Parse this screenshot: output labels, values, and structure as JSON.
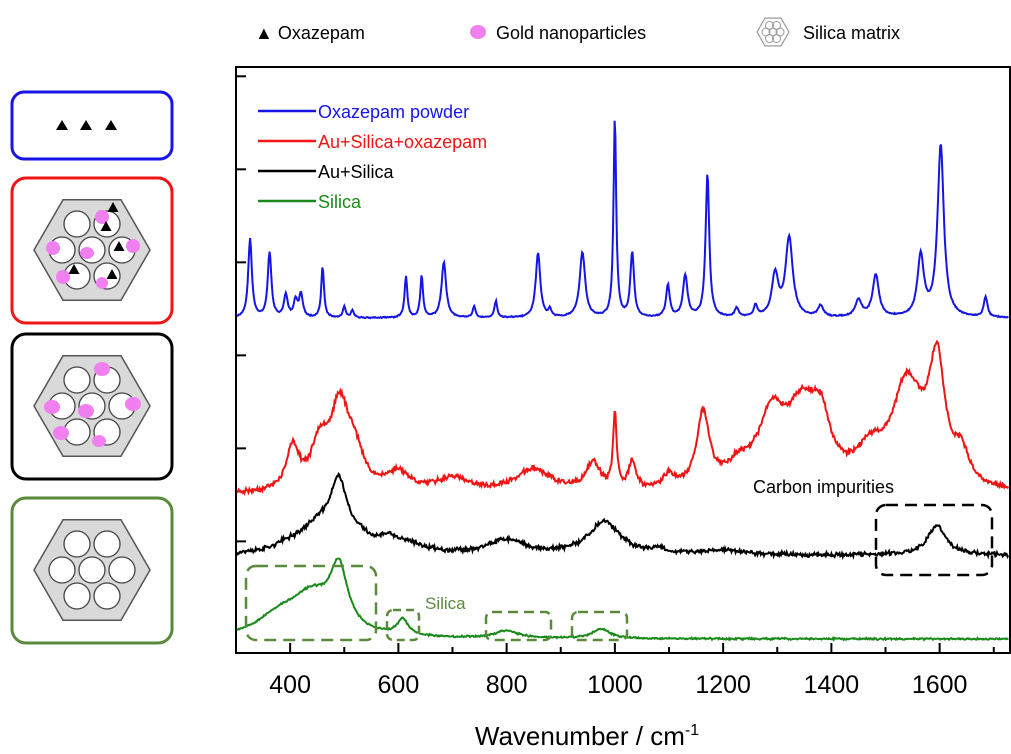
{
  "top_legend": {
    "oxazepam": "▲ Oxazepam",
    "gold": "Gold nanoparticles",
    "silica": "Silica matrix"
  },
  "colors": {
    "blue": "#1515e6",
    "red": "#f01414",
    "black": "#000000",
    "green": "#1a8a1a",
    "panel_green": "#5a8a3c",
    "gold": "#f080f0",
    "hex_fill": "#d9d9d9"
  },
  "annotations": {
    "carbon": "Carbon impurities",
    "silica": "Silica"
  },
  "chart_data": {
    "type": "line",
    "title": "",
    "xlabel": "Wavenumber / cm",
    "xlabel_sup": "-1",
    "ylabel": "",
    "xlim": [
      300,
      1730
    ],
    "ylim": [
      0,
      6.3
    ],
    "x_ticks": [
      400,
      600,
      800,
      1000,
      1200,
      1400,
      1600
    ],
    "x_tick_labels": [
      "400",
      "600",
      "800",
      "1000",
      "1200",
      "1400",
      "1600"
    ],
    "y_ticks": [
      1.2,
      2.2,
      3.2,
      4.2,
      5.2,
      6.2
    ],
    "legend_position": "top-left",
    "series": [
      {
        "name": "Oxazepam powder",
        "color": "#1515e6",
        "baseline": 3.6,
        "noise": 0.008,
        "seed": 11,
        "peaks": [
          [
            326,
            0.85,
            4
          ],
          [
            362,
            0.7,
            4
          ],
          [
            392,
            0.25,
            4
          ],
          [
            410,
            0.18,
            4
          ],
          [
            420,
            0.25,
            4
          ],
          [
            460,
            0.55,
            3
          ],
          [
            500,
            0.12,
            3
          ],
          [
            515,
            0.08,
            3
          ],
          [
            614,
            0.45,
            3
          ],
          [
            643,
            0.45,
            3
          ],
          [
            684,
            0.6,
            5
          ],
          [
            740,
            0.12,
            3
          ],
          [
            780,
            0.18,
            3
          ],
          [
            858,
            0.7,
            5
          ],
          [
            880,
            0.08,
            3
          ],
          [
            940,
            0.7,
            6
          ],
          [
            1000,
            2.15,
            3
          ],
          [
            1032,
            0.7,
            4
          ],
          [
            1098,
            0.35,
            4
          ],
          [
            1130,
            0.45,
            5
          ],
          [
            1171,
            1.55,
            4
          ],
          [
            1225,
            0.1,
            4
          ],
          [
            1260,
            0.12,
            4
          ],
          [
            1296,
            0.45,
            7
          ],
          [
            1322,
            0.85,
            8
          ],
          [
            1380,
            0.12,
            6
          ],
          [
            1450,
            0.18,
            7
          ],
          [
            1482,
            0.45,
            7
          ],
          [
            1565,
            0.65,
            7
          ],
          [
            1602,
            1.85,
            7
          ],
          [
            1685,
            0.22,
            4
          ]
        ]
      },
      {
        "name": "Au+Silica+oxazepam",
        "color": "#f01414",
        "baseline": 1.7,
        "noise": 0.035,
        "seed": 23,
        "peaks": [
          [
            405,
            0.45,
            14
          ],
          [
            455,
            0.45,
            18
          ],
          [
            492,
            0.9,
            22
          ],
          [
            520,
            0.3,
            18
          ],
          [
            600,
            0.2,
            25
          ],
          [
            700,
            0.15,
            35
          ],
          [
            850,
            0.25,
            40
          ],
          [
            960,
            0.3,
            15
          ],
          [
            1000,
            0.8,
            4
          ],
          [
            1032,
            0.3,
            8
          ],
          [
            1100,
            0.15,
            12
          ],
          [
            1163,
            0.8,
            14
          ],
          [
            1230,
            0.2,
            30
          ],
          [
            1290,
            0.7,
            30
          ],
          [
            1345,
            0.75,
            35
          ],
          [
            1380,
            0.55,
            22
          ],
          [
            1470,
            0.3,
            30
          ],
          [
            1540,
            1.1,
            35
          ],
          [
            1595,
            1.25,
            18
          ],
          [
            1640,
            0.3,
            15
          ]
        ]
      },
      {
        "name": "Au+Silica",
        "color": "#000000",
        "baseline": 1.05,
        "noise": 0.03,
        "seed": 37,
        "peaks": [
          [
            400,
            0.08,
            35
          ],
          [
            450,
            0.25,
            35
          ],
          [
            490,
            0.7,
            20
          ],
          [
            530,
            0.1,
            20
          ],
          [
            580,
            0.12,
            25
          ],
          [
            620,
            0.08,
            40
          ],
          [
            800,
            0.15,
            40
          ],
          [
            980,
            0.35,
            35
          ],
          [
            1080,
            0.05,
            15
          ],
          [
            1200,
            0.05,
            40
          ],
          [
            1595,
            0.32,
            20
          ]
        ]
      },
      {
        "name": "Silica",
        "color": "#1a8a1a",
        "baseline": 0.15,
        "noise": 0.012,
        "seed": 53,
        "peaks": [
          [
            380,
            0.2,
            50
          ],
          [
            440,
            0.4,
            45
          ],
          [
            490,
            0.65,
            20
          ],
          [
            608,
            0.17,
            12
          ],
          [
            800,
            0.08,
            25
          ],
          [
            975,
            0.1,
            20
          ]
        ]
      }
    ]
  }
}
